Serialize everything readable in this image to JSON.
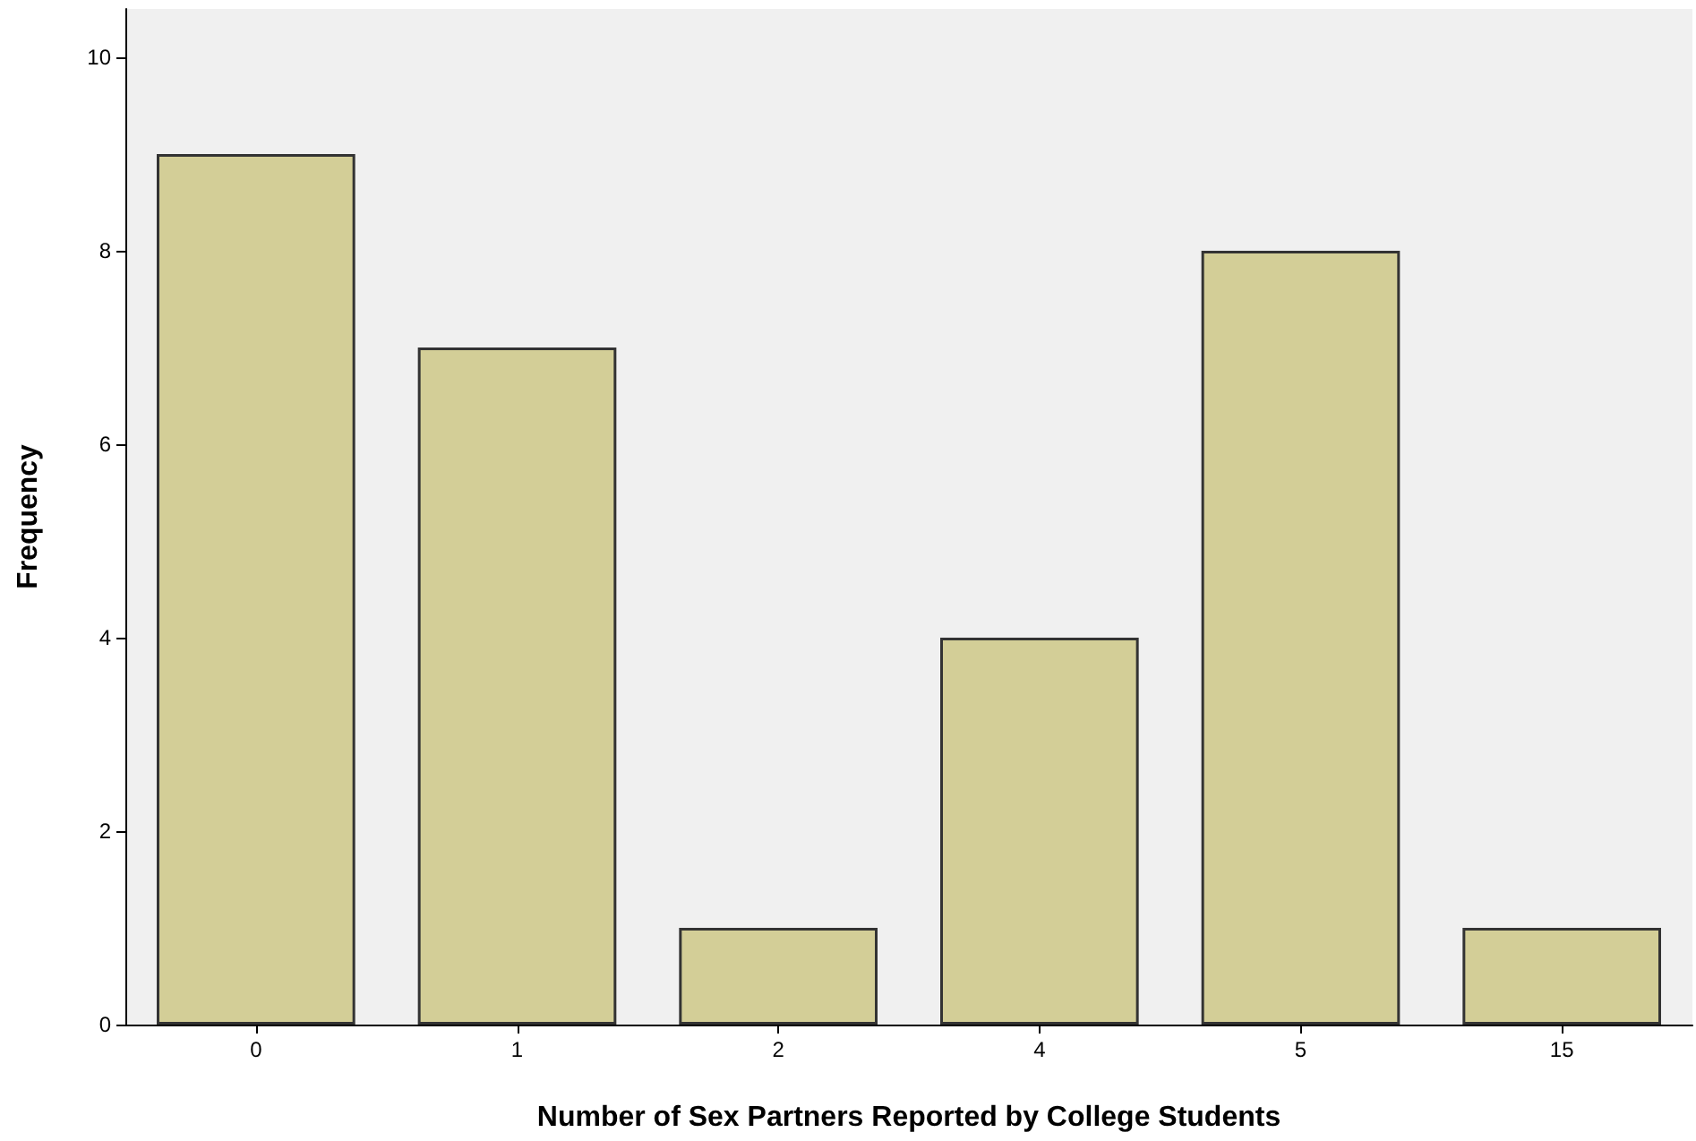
{
  "chart_data": {
    "type": "bar",
    "xlabel": "Number of Sex Partners Reported by College Students",
    "ylabel": "Frequency",
    "categories": [
      "0",
      "1",
      "2",
      "4",
      "5",
      "15"
    ],
    "values": [
      9,
      7,
      1,
      4,
      8,
      1
    ],
    "color": "#d3ce97",
    "ylim": [
      0,
      10.5
    ],
    "yticks": [
      0,
      2,
      4,
      6,
      8,
      10
    ],
    "grid": false
  }
}
